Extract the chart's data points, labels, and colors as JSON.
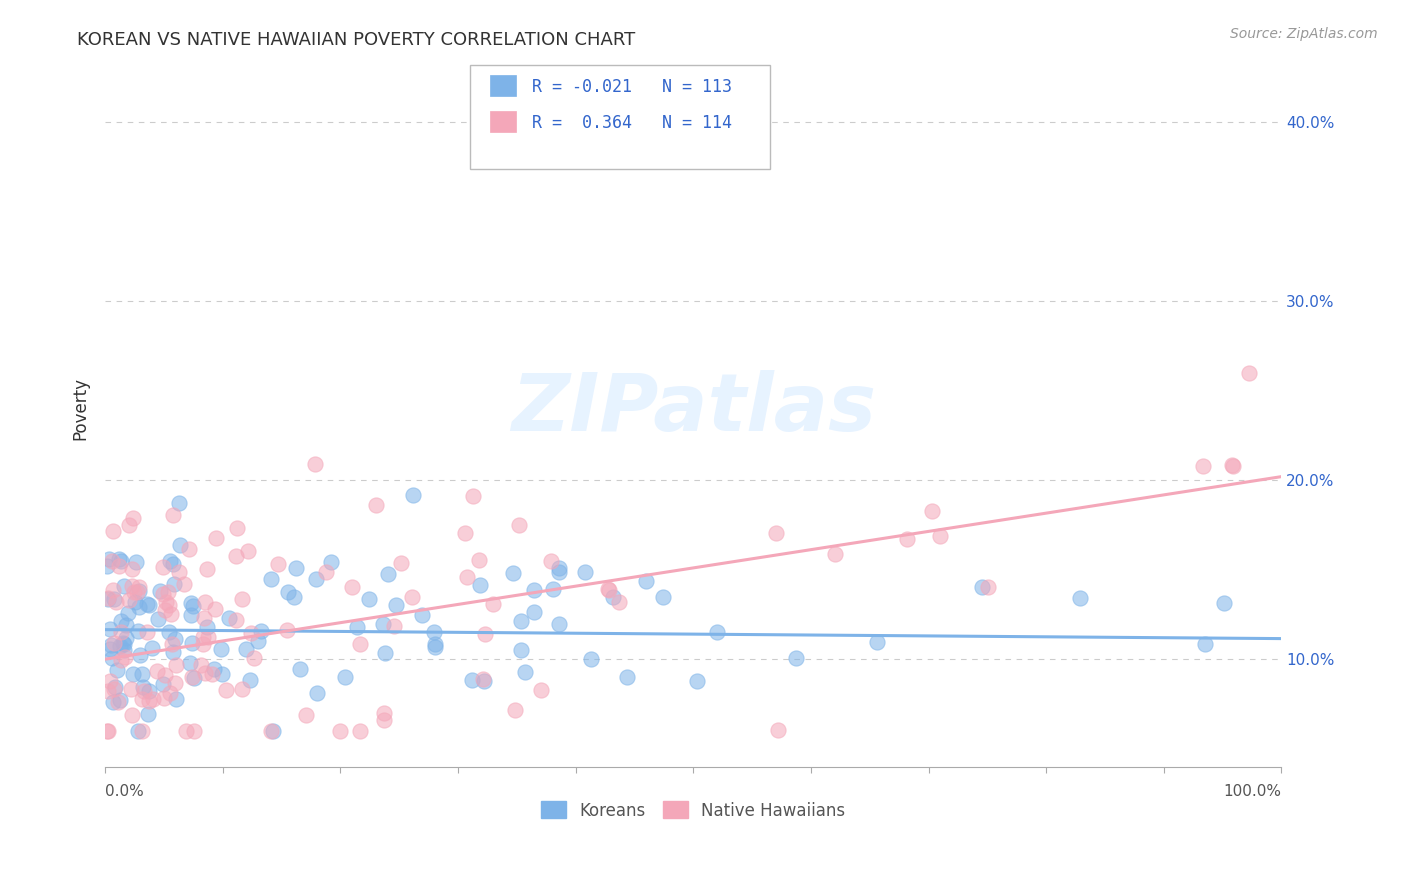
{
  "title": "KOREAN VS NATIVE HAWAIIAN POVERTY CORRELATION CHART",
  "source_text": "Source: ZipAtlas.com",
  "ylabel": "Poverty",
  "xlim": [
    0,
    1.0
  ],
  "ylim": [
    0.04,
    0.44
  ],
  "xticks": [
    0.0,
    0.1,
    0.2,
    0.3,
    0.4,
    0.5,
    0.6,
    0.7,
    0.8,
    0.9,
    1.0
  ],
  "xticklabels_edge": [
    "0.0%",
    "100.0%"
  ],
  "yticks": [
    0.1,
    0.2,
    0.3,
    0.4
  ],
  "yticklabels": [
    "10.0%",
    "20.0%",
    "30.0%",
    "40.0%"
  ],
  "korean_color": "#7EB3E8",
  "hawaiian_color": "#F4A7B9",
  "korean_R": -0.021,
  "korean_N": 113,
  "hawaiian_R": 0.364,
  "hawaiian_N": 114,
  "bottom_legend_korean": "Koreans",
  "bottom_legend_hawaiian": "Native Hawaiians",
  "watermark_text": "ZIPatlas",
  "background_color": "#ffffff",
  "grid_color": "#cccccc",
  "title_color": "#333333",
  "axis_color": "#555555",
  "legend_text_color": "#3366CC",
  "korean_trend": [
    0.1165,
    0.1115
  ],
  "hawaiian_trend": [
    0.1,
    0.202
  ]
}
